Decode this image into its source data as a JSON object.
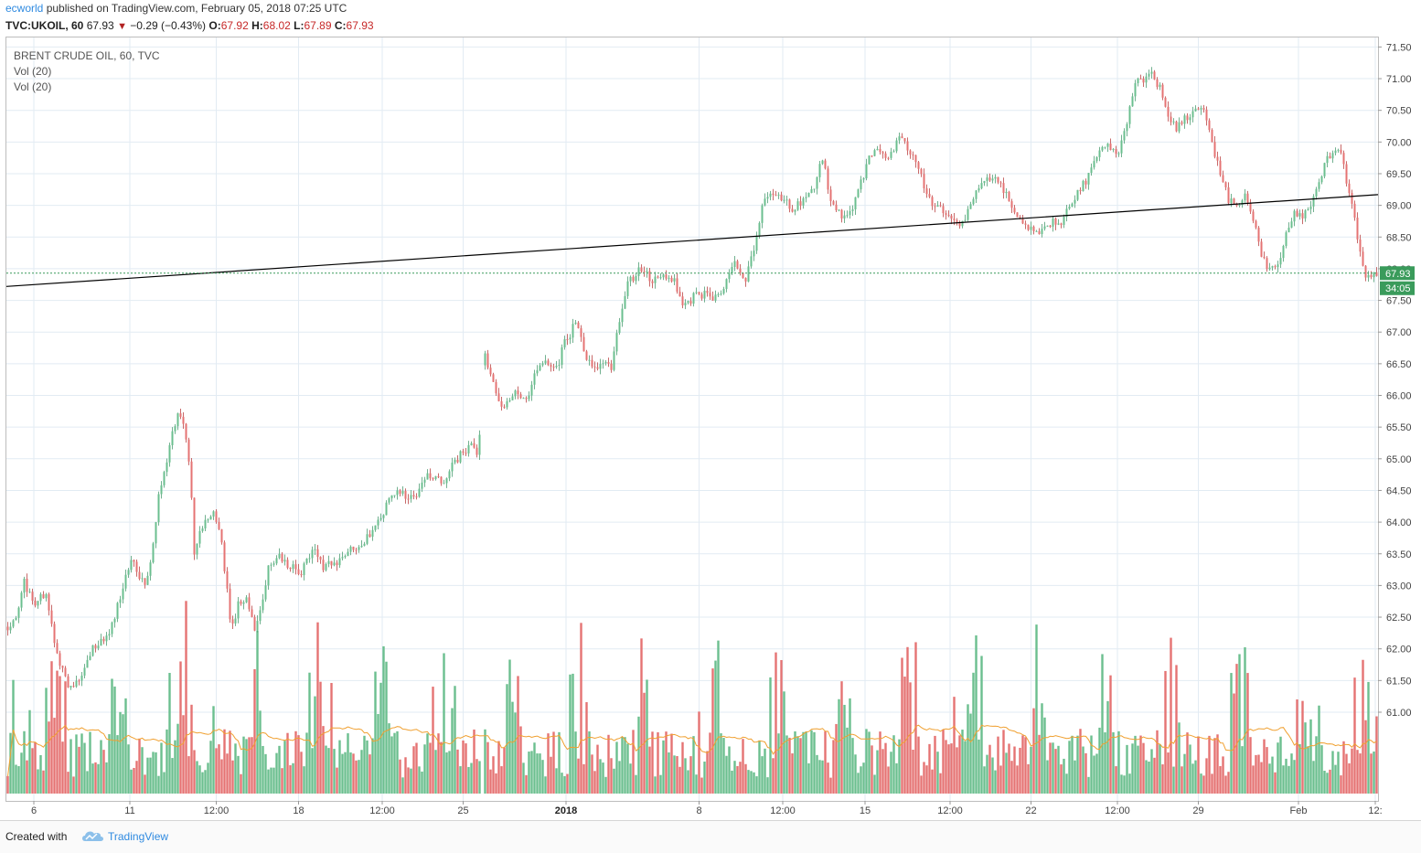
{
  "header": {
    "publisher": "ecworld",
    "published_text": "published on TradingView.com, February 05, 2018 07:25 UTC"
  },
  "symbol_bar": {
    "symbol": "TVC:UKOIL, 60",
    "last": "67.93",
    "change": "−0.29 (−0.43%)",
    "open_label": "O:",
    "open": "67.92",
    "high_label": "H:",
    "high": "68.02",
    "low_label": "L:",
    "low": "67.89",
    "close_label": "C:",
    "close": "67.93"
  },
  "legend": {
    "title": "BRENT CRUDE OIL, 60, TVC",
    "vol1": "Vol (20)",
    "vol2": "Vol (20)"
  },
  "price_label": "67.93",
  "countdown_label": "34:05",
  "footer": {
    "made_with": "Created with",
    "brand": "TradingView"
  },
  "colors": {
    "up": "#6bbf8f",
    "down": "#e57373",
    "wick": "#777777",
    "trendline": "#000000",
    "ma": "#f0a030",
    "price_line": "#3a9b5b",
    "grid": "#e2ebf3"
  },
  "chart_data": {
    "type": "candlestick",
    "title": "BRENT CRUDE OIL, 60, TVC",
    "ylim": [
      59.6,
      71.65
    ],
    "y_ticks": [
      "71.50",
      "71.00",
      "70.50",
      "70.00",
      "69.50",
      "69.00",
      "68.50",
      "68.00",
      "67.50",
      "67.00",
      "66.50",
      "66.00",
      "65.50",
      "65.00",
      "64.50",
      "64.00",
      "63.50",
      "63.00",
      "62.50",
      "62.00",
      "61.50",
      "61.00"
    ],
    "x_ticks": [
      {
        "label": "6",
        "frac": 0.02
      },
      {
        "label": "11",
        "frac": 0.09
      },
      {
        "label": "12:00",
        "frac": 0.153
      },
      {
        "label": "18",
        "frac": 0.213
      },
      {
        "label": "12:00",
        "frac": 0.274
      },
      {
        "label": "25",
        "frac": 0.333
      },
      {
        "label": "2018",
        "frac": 0.408,
        "bold": true
      },
      {
        "label": "8",
        "frac": 0.505
      },
      {
        "label": "12:00",
        "frac": 0.566
      },
      {
        "label": "15",
        "frac": 0.626
      },
      {
        "label": "12:00",
        "frac": 0.688
      },
      {
        "label": "22",
        "frac": 0.747
      },
      {
        "label": "12:00",
        "frac": 0.81
      },
      {
        "label": "29",
        "frac": 0.869
      },
      {
        "label": "Feb",
        "frac": 0.942
      },
      {
        "label": "12:",
        "frac": 0.998
      }
    ],
    "price_path": [
      [
        0.0,
        62.35
      ],
      [
        0.008,
        62.6
      ],
      [
        0.012,
        63.05
      ],
      [
        0.02,
        62.7
      ],
      [
        0.028,
        62.9
      ],
      [
        0.033,
        62.2
      ],
      [
        0.038,
        61.8
      ],
      [
        0.045,
        61.35
      ],
      [
        0.055,
        61.6
      ],
      [
        0.062,
        62.05
      ],
      [
        0.07,
        62.1
      ],
      [
        0.078,
        62.5
      ],
      [
        0.085,
        63.1
      ],
      [
        0.09,
        63.45
      ],
      [
        0.095,
        63.2
      ],
      [
        0.1,
        63.05
      ],
      [
        0.105,
        63.4
      ],
      [
        0.11,
        64.5
      ],
      [
        0.115,
        64.85
      ],
      [
        0.12,
        65.5
      ],
      [
        0.125,
        65.7
      ],
      [
        0.13,
        65.35
      ],
      [
        0.133,
        64.8
      ],
      [
        0.136,
        63.5
      ],
      [
        0.14,
        63.8
      ],
      [
        0.146,
        64.05
      ],
      [
        0.15,
        64.2
      ],
      [
        0.155,
        63.8
      ],
      [
        0.16,
        62.9
      ],
      [
        0.163,
        62.3
      ],
      [
        0.168,
        62.7
      ],
      [
        0.174,
        62.85
      ],
      [
        0.18,
        62.35
      ],
      [
        0.186,
        62.75
      ],
      [
        0.19,
        63.3
      ],
      [
        0.198,
        63.45
      ],
      [
        0.206,
        63.3
      ],
      [
        0.214,
        63.2
      ],
      [
        0.222,
        63.6
      ],
      [
        0.23,
        63.3
      ],
      [
        0.238,
        63.35
      ],
      [
        0.248,
        63.55
      ],
      [
        0.26,
        63.7
      ],
      [
        0.27,
        64.0
      ],
      [
        0.278,
        64.35
      ],
      [
        0.286,
        64.5
      ],
      [
        0.295,
        64.35
      ],
      [
        0.305,
        64.75
      ],
      [
        0.318,
        64.6
      ],
      [
        0.325,
        64.95
      ],
      [
        0.332,
        65.1
      ],
      [
        0.338,
        65.2
      ],
      [
        0.343,
        65.1
      ],
      [
        0.348,
        66.6
      ],
      [
        0.352,
        66.35
      ],
      [
        0.357,
        65.9
      ],
      [
        0.363,
        65.85
      ],
      [
        0.37,
        66.1
      ],
      [
        0.377,
        65.9
      ],
      [
        0.385,
        66.35
      ],
      [
        0.393,
        66.5
      ],
      [
        0.4,
        66.4
      ],
      [
        0.406,
        66.85
      ],
      [
        0.41,
        66.95
      ],
      [
        0.414,
        67.2
      ],
      [
        0.42,
        66.75
      ],
      [
        0.425,
        66.45
      ],
      [
        0.432,
        66.5
      ],
      [
        0.44,
        66.45
      ],
      [
        0.446,
        67.15
      ],
      [
        0.452,
        67.8
      ],
      [
        0.458,
        67.9
      ],
      [
        0.463,
        68.05
      ],
      [
        0.47,
        67.75
      ],
      [
        0.477,
        67.95
      ],
      [
        0.485,
        67.85
      ],
      [
        0.493,
        67.4
      ],
      [
        0.5,
        67.55
      ],
      [
        0.508,
        67.6
      ],
      [
        0.515,
        67.55
      ],
      [
        0.522,
        67.7
      ],
      [
        0.53,
        68.15
      ],
      [
        0.538,
        67.8
      ],
      [
        0.545,
        68.4
      ],
      [
        0.55,
        69.05
      ],
      [
        0.558,
        69.2
      ],
      [
        0.566,
        69.1
      ],
      [
        0.572,
        68.95
      ],
      [
        0.58,
        69.1
      ],
      [
        0.588,
        69.3
      ],
      [
        0.594,
        69.75
      ],
      [
        0.6,
        69.05
      ],
      [
        0.607,
        68.85
      ],
      [
        0.613,
        68.85
      ],
      [
        0.62,
        69.2
      ],
      [
        0.627,
        69.7
      ],
      [
        0.635,
        69.9
      ],
      [
        0.642,
        69.75
      ],
      [
        0.65,
        70.1
      ],
      [
        0.656,
        69.9
      ],
      [
        0.662,
        69.75
      ],
      [
        0.668,
        69.3
      ],
      [
        0.675,
        69.0
      ],
      [
        0.682,
        68.9
      ],
      [
        0.69,
        68.7
      ],
      [
        0.697,
        68.75
      ],
      [
        0.704,
        69.15
      ],
      [
        0.712,
        69.45
      ],
      [
        0.72,
        69.45
      ],
      [
        0.728,
        69.2
      ],
      [
        0.735,
        68.8
      ],
      [
        0.742,
        68.7
      ],
      [
        0.748,
        68.55
      ],
      [
        0.756,
        68.6
      ],
      [
        0.762,
        68.75
      ],
      [
        0.768,
        68.7
      ],
      [
        0.775,
        69.05
      ],
      [
        0.782,
        69.25
      ],
      [
        0.788,
        69.45
      ],
      [
        0.795,
        69.8
      ],
      [
        0.802,
        69.95
      ],
      [
        0.81,
        69.85
      ],
      [
        0.816,
        70.3
      ],
      [
        0.822,
        70.9
      ],
      [
        0.828,
        71.0
      ],
      [
        0.834,
        71.1
      ],
      [
        0.84,
        70.85
      ],
      [
        0.846,
        70.45
      ],
      [
        0.852,
        70.2
      ],
      [
        0.858,
        70.35
      ],
      [
        0.866,
        70.55
      ],
      [
        0.872,
        70.45
      ],
      [
        0.878,
        70.0
      ],
      [
        0.884,
        69.5
      ],
      [
        0.89,
        69.1
      ],
      [
        0.896,
        69.0
      ],
      [
        0.902,
        69.15
      ],
      [
        0.908,
        68.8
      ],
      [
        0.914,
        68.2
      ],
      [
        0.92,
        67.95
      ],
      [
        0.926,
        68.05
      ],
      [
        0.932,
        68.55
      ],
      [
        0.938,
        68.85
      ],
      [
        0.944,
        68.85
      ],
      [
        0.95,
        69.0
      ],
      [
        0.956,
        69.4
      ],
      [
        0.962,
        69.75
      ],
      [
        0.968,
        69.9
      ],
      [
        0.972,
        69.8
      ],
      [
        0.976,
        69.4
      ],
      [
        0.98,
        69.0
      ],
      [
        0.984,
        68.5
      ],
      [
        0.988,
        68.0
      ],
      [
        0.993,
        67.8
      ],
      [
        0.998,
        67.93
      ]
    ],
    "gaps": [
      [
        0.345,
        0.347
      ]
    ],
    "trendline": [
      [
        0.0,
        67.72
      ],
      [
        1.0,
        69.17
      ]
    ],
    "last_price": 67.93,
    "volume_ma_level": 0.28
  }
}
